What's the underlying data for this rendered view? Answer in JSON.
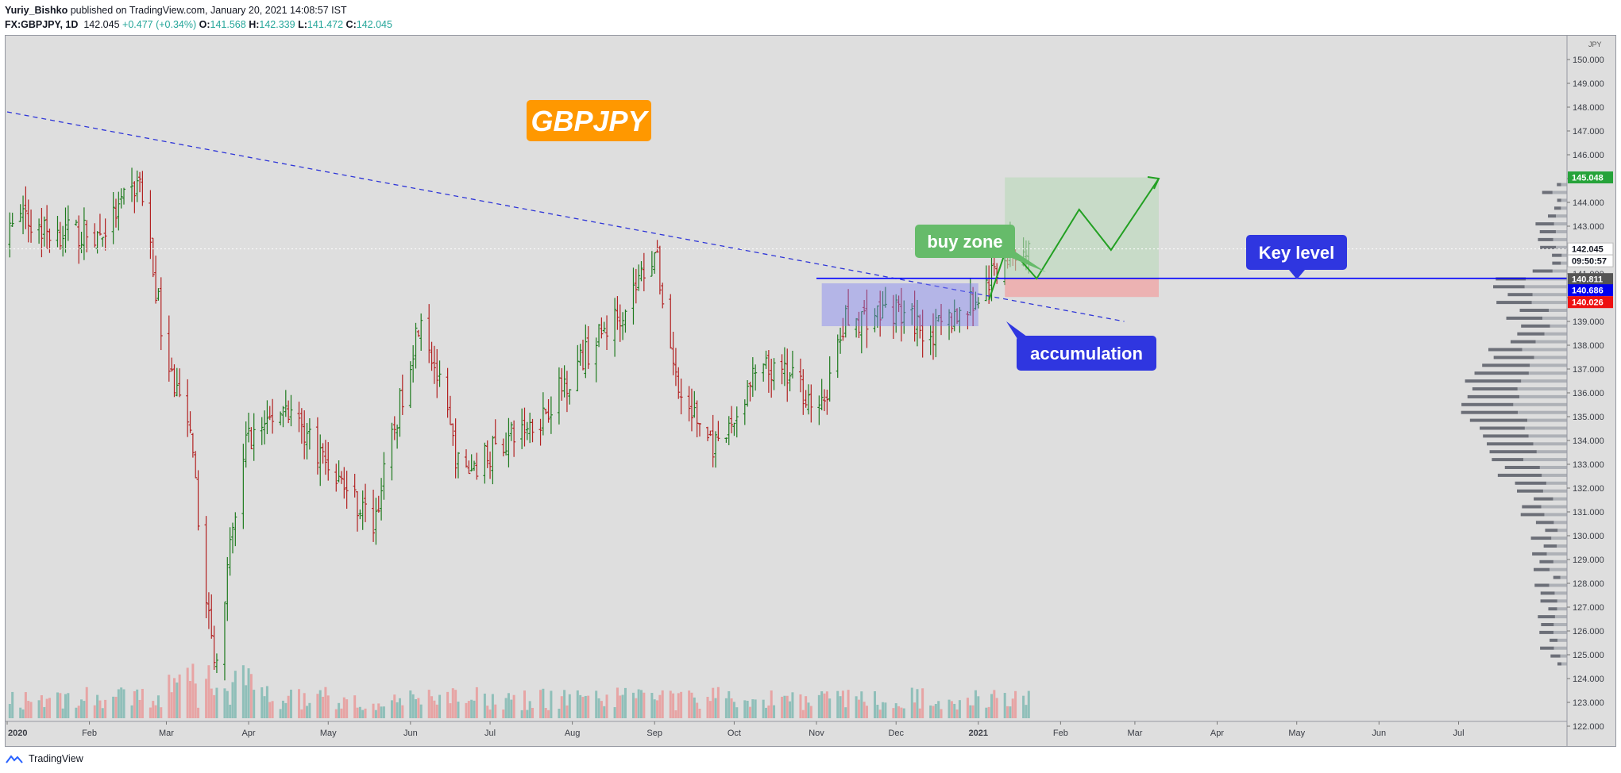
{
  "header": {
    "author": "Yuriy_Bishko",
    "published_text": "published on TradingView.com, January 20, 2021 14:08:57 IST",
    "symbol": "FX:GBPJPY, 1D",
    "last": "142.045",
    "change": "+0.477 (+0.34%)",
    "ohlc": [
      {
        "key": "O:",
        "value": "141.568"
      },
      {
        "key": "H:",
        "value": "142.339"
      },
      {
        "key": "L:",
        "value": "141.472"
      },
      {
        "key": "C:",
        "value": "142.045"
      }
    ]
  },
  "footer": {
    "brand": "TradingView"
  },
  "colors": {
    "background": "#dedede",
    "up": "#1e7a1e",
    "down": "#b22222",
    "volume_up": "#8fbfb9",
    "volume_down": "#e7a4a4",
    "trendline": "#2f36d8",
    "key_level": "#0000ff",
    "badge_title": "#ff9800",
    "badge_buy": "#66bb6a",
    "badge_blue": "#2f36e0",
    "projection": "#22a022"
  },
  "chart_data": {
    "type": "candlestick",
    "symbol": "GBPJPY",
    "timeframe": "1D",
    "y_axis": {
      "unit": "JPY",
      "range": [
        121.5,
        151.0
      ],
      "ticks": [
        "122.000",
        "123.000",
        "124.000",
        "125.000",
        "126.000",
        "127.000",
        "128.000",
        "129.000",
        "130.000",
        "131.000",
        "132.000",
        "133.000",
        "134.000",
        "135.000",
        "136.000",
        "137.000",
        "138.000",
        "139.000",
        "140.000",
        "141.000",
        "142.000",
        "143.000",
        "144.000",
        "145.000",
        "146.000",
        "147.000",
        "148.000",
        "149.000",
        "150.000"
      ]
    },
    "x_axis": {
      "labels": [
        "2020",
        "Feb",
        "Mar",
        "Apr",
        "May",
        "Jun",
        "Jul",
        "Aug",
        "Sep",
        "Oct",
        "Nov",
        "Dec",
        "2021",
        "Feb",
        "Mar",
        "Apr",
        "May",
        "Jun",
        "Jul"
      ]
    },
    "price_path": [
      {
        "date": "2020-01-02",
        "close": 143.5
      },
      {
        "date": "2020-01-15",
        "close": 142.8
      },
      {
        "date": "2020-02-05",
        "close": 142.6
      },
      {
        "date": "2020-02-20",
        "close": 144.9
      },
      {
        "date": "2020-03-01",
        "close": 137.5
      },
      {
        "date": "2020-03-10",
        "close": 134.0
      },
      {
        "date": "2020-03-19",
        "close": 124.5
      },
      {
        "date": "2020-03-31",
        "close": 134.0
      },
      {
        "date": "2020-04-15",
        "close": 135.5
      },
      {
        "date": "2020-05-01",
        "close": 133.0
      },
      {
        "date": "2020-05-18",
        "close": 130.5
      },
      {
        "date": "2020-06-05",
        "close": 139.5
      },
      {
        "date": "2020-06-20",
        "close": 132.5
      },
      {
        "date": "2020-07-01",
        "close": 133.5
      },
      {
        "date": "2020-07-20",
        "close": 135.0
      },
      {
        "date": "2020-08-05",
        "close": 137.5
      },
      {
        "date": "2020-08-20",
        "close": 139.5
      },
      {
        "date": "2020-09-01",
        "close": 142.0
      },
      {
        "date": "2020-09-10",
        "close": 136.0
      },
      {
        "date": "2020-09-25",
        "close": 133.5
      },
      {
        "date": "2020-10-10",
        "close": 137.0
      },
      {
        "date": "2020-10-25",
        "close": 136.5
      },
      {
        "date": "2020-11-02",
        "close": 135.0
      },
      {
        "date": "2020-11-12",
        "close": 139.0
      },
      {
        "date": "2020-11-30",
        "close": 139.5
      },
      {
        "date": "2020-12-15",
        "close": 138.5
      },
      {
        "date": "2021-01-01",
        "close": 140.0
      },
      {
        "date": "2021-01-11",
        "close": 141.8
      },
      {
        "date": "2021-01-20",
        "close": 142.045
      }
    ],
    "price_labels": [
      {
        "value": "145.048",
        "color": "#26a33a"
      },
      {
        "value": "142.045",
        "color": "#ffffff"
      },
      {
        "value": "09:50:57",
        "color": "#ffffff"
      },
      {
        "value": "140.811",
        "color": "#555555"
      },
      {
        "value": "140.686",
        "color": "#0000ee"
      },
      {
        "value": "140.026",
        "color": "#ee1111"
      }
    ],
    "last_price": 142.045,
    "key_level_price": 140.811,
    "annotations": [
      {
        "text": "GBPJPY",
        "kind": "title"
      },
      {
        "text": "buy zone",
        "kind": "callout"
      },
      {
        "text": "accumulation",
        "kind": "callout"
      },
      {
        "text": "Key level",
        "kind": "callout"
      }
    ],
    "accumulation_zone": {
      "from": "2020-11-03",
      "to": "2021-01-01",
      "low": 138.8,
      "high": 140.6
    },
    "trade_box": {
      "entry": 140.811,
      "target": 145.048,
      "stop": 140.026,
      "from": "2021-01-11",
      "to": "2021-03-10"
    },
    "projection_path": [
      {
        "date": "2021-01-05",
        "price": 139.9
      },
      {
        "date": "2021-01-12",
        "price": 142.2
      },
      {
        "date": "2021-01-23",
        "price": 140.8
      },
      {
        "date": "2021-02-08",
        "price": 143.7
      },
      {
        "date": "2021-02-20",
        "price": 142.0
      },
      {
        "date": "2021-03-10",
        "price": 145.0
      }
    ],
    "trendline": [
      {
        "date": "2020-01-01",
        "price": 147.8
      },
      {
        "date": "2021-02-25",
        "price": 139.0
      }
    ],
    "grid": false,
    "volume_profile": true,
    "volume": true
  }
}
